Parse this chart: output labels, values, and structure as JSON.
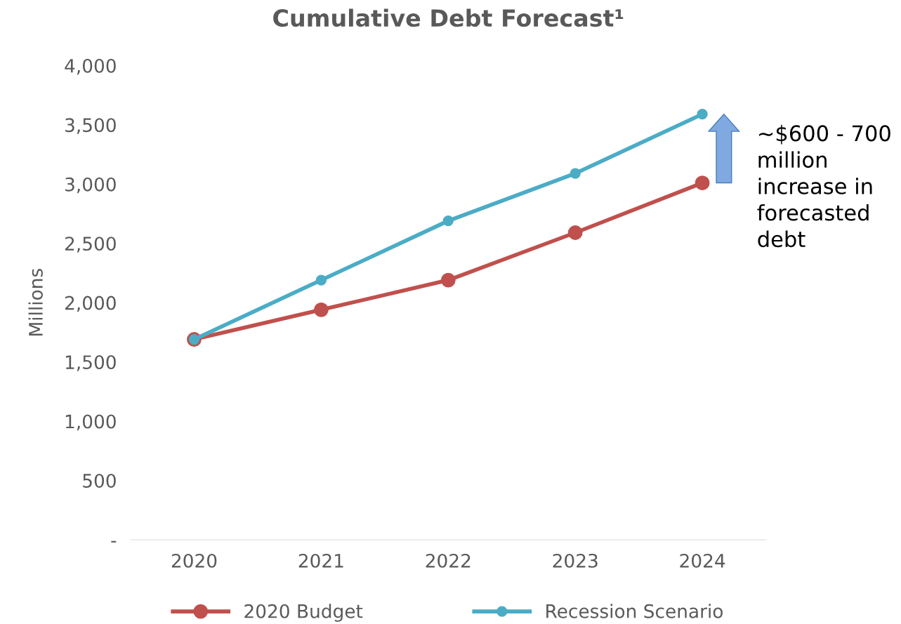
{
  "chart_data": {
    "type": "line",
    "title": "Cumulative Debt Forecast¹",
    "ylabel": "Millions",
    "categories": [
      "2020",
      "2021",
      "2022",
      "2023",
      "2024"
    ],
    "series": [
      {
        "name": "2020 Budget",
        "color": "#c0504d",
        "values": [
          1690,
          1940,
          2190,
          2590,
          3010
        ]
      },
      {
        "name": "Recession Scenario",
        "color": "#4bacc6",
        "values": [
          1690,
          2190,
          2690,
          3090,
          3590
        ]
      }
    ],
    "ylim": [
      0,
      4000
    ],
    "yticks": [
      {
        "value": 0,
        "label": "-"
      },
      {
        "value": 500,
        "label": "500"
      },
      {
        "value": 1000,
        "label": "1,000"
      },
      {
        "value": 1500,
        "label": "1,500"
      },
      {
        "value": 2000,
        "label": "2,000"
      },
      {
        "value": 2500,
        "label": "2,500"
      },
      {
        "value": 3000,
        "label": "3,000"
      },
      {
        "value": 3500,
        "label": "3,500"
      },
      {
        "value": 4000,
        "label": "4,000"
      }
    ],
    "marker": "circle",
    "line_style": "solid",
    "grid": false,
    "legend": "bottom",
    "annotations": [
      "~$600 - 700\nmillion\nincrease in\nforecasted\ndebt"
    ]
  }
}
